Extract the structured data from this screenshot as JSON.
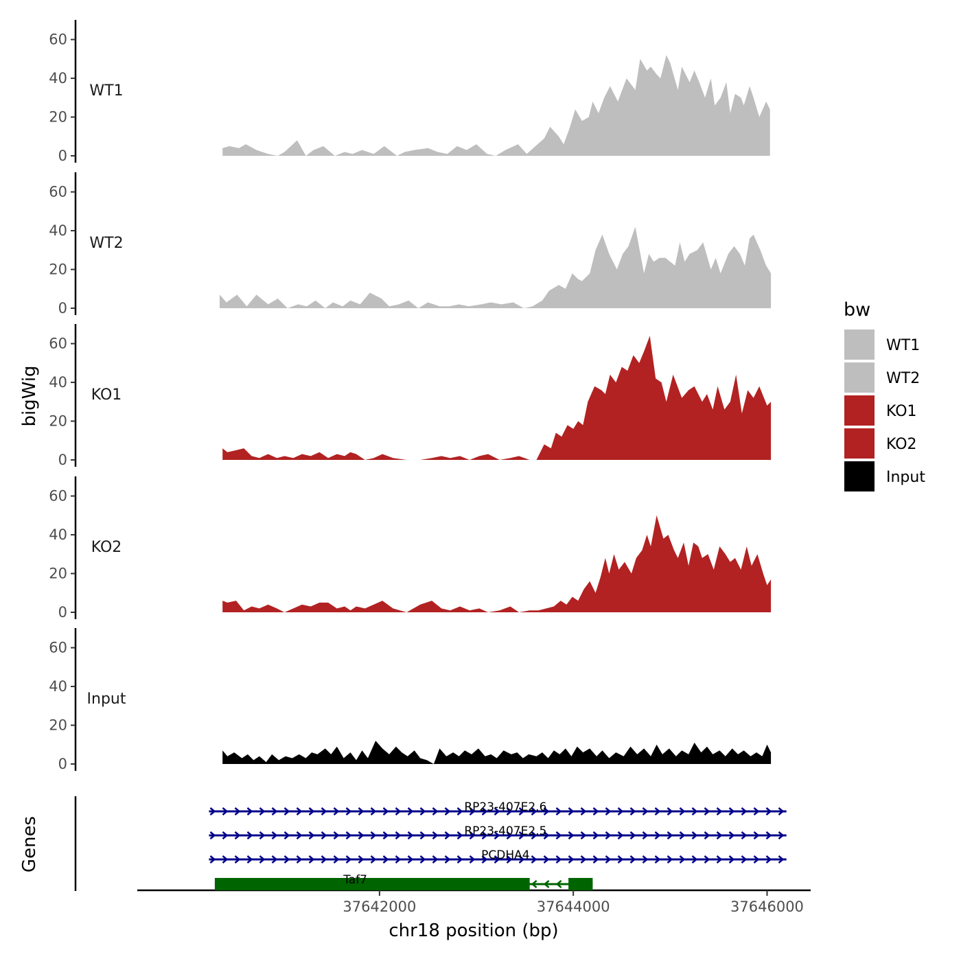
{
  "chart_data": {
    "type": "area",
    "title": "",
    "ylabel": "bigWig",
    "xlabel": "chr18 position (bp)",
    "gene_panel_label": "Genes",
    "x_ticks": [
      37642000,
      37644000,
      37646000
    ],
    "x_tick_labels": [
      "37642000",
      "37644000",
      "37646000"
    ],
    "xlim": [
      37639500,
      37646450
    ],
    "ylim": [
      0,
      68
    ],
    "y_ticks": [
      0,
      20,
      40,
      60
    ],
    "y_tick_labels": [
      "0",
      "20",
      "40",
      "60"
    ],
    "legend": {
      "title": "bw",
      "position": "right",
      "entries": [
        {
          "label": "WT1",
          "color": "#bebebe"
        },
        {
          "label": "WT2",
          "color": "#bebebe"
        },
        {
          "label": "KO1",
          "color": "#b22222"
        },
        {
          "label": "KO2",
          "color": "#b22222"
        },
        {
          "label": "Input",
          "color": "#000000"
        }
      ]
    },
    "series": [
      {
        "name": "WT1",
        "color": "#bebebe",
        "x": [
          37640380,
          37640450,
          37640550,
          37640620,
          37640730,
          37640850,
          37640950,
          37641020,
          37641150,
          37641240,
          37641320,
          37641420,
          37641540,
          37641640,
          37641720,
          37641820,
          37641940,
          37642050,
          37642180,
          37642260,
          37642360,
          37642500,
          37642600,
          37642700,
          37642800,
          37642900,
          37643000,
          37643110,
          37643200,
          37643300,
          37643430,
          37643520,
          37643610,
          37643700,
          37643760,
          37643850,
          37643900,
          37643960,
          37644020,
          37644090,
          37644160,
          37644200,
          37644260,
          37644320,
          37644380,
          37644460,
          37644490,
          37644550,
          37644640,
          37644690,
          37644760,
          37644800,
          37644860,
          37644900,
          37644960,
          37645000,
          37645080,
          37645120,
          37645200,
          37645250,
          37645300,
          37645360,
          37645420,
          37645460,
          37645520,
          37645580,
          37645620,
          37645670,
          37645730,
          37645760,
          37645820,
          37645860,
          37645920,
          37645990,
          37646030
        ],
        "values": [
          4,
          5,
          4,
          6,
          3,
          1,
          0,
          2,
          8,
          0,
          3,
          5,
          0,
          2,
          1,
          3,
          1,
          5,
          0,
          2,
          3,
          4,
          2,
          1,
          5,
          3,
          6,
          1,
          0,
          3,
          6,
          1,
          5,
          9,
          15,
          10,
          6,
          14,
          24,
          18,
          20,
          28,
          22,
          30,
          36,
          28,
          32,
          40,
          34,
          50,
          44,
          46,
          42,
          40,
          52,
          48,
          34,
          46,
          38,
          44,
          38,
          30,
          40,
          26,
          30,
          38,
          22,
          32,
          30,
          26,
          36,
          30,
          20,
          28,
          24
        ]
      },
      {
        "name": "WT2",
        "color": "#bebebe",
        "x": [
          37640350,
          37640420,
          37640530,
          37640630,
          37640730,
          37640850,
          37640950,
          37641050,
          37641160,
          37641250,
          37641340,
          37641440,
          37641520,
          37641620,
          37641700,
          37641800,
          37641900,
          37642020,
          37642100,
          37642200,
          37642300,
          37642400,
          37642500,
          37642620,
          37642720,
          37642820,
          37642920,
          37643050,
          37643150,
          37643260,
          37643380,
          37643490,
          37643580,
          37643680,
          37643750,
          37643850,
          37643920,
          37643990,
          37644050,
          37644090,
          37644170,
          37644230,
          37644300,
          37644370,
          37644450,
          37644510,
          37644570,
          37644640,
          37644730,
          37644780,
          37644830,
          37644890,
          37644950,
          37645050,
          37645100,
          37645150,
          37645200,
          37645280,
          37645340,
          37645420,
          37645470,
          37645520,
          37645600,
          37645660,
          37645720,
          37645770,
          37645820,
          37645860,
          37645930,
          37645990,
          37646040
        ],
        "values": [
          7,
          3,
          7,
          1,
          7,
          2,
          5,
          0,
          2,
          1,
          4,
          0,
          3,
          1,
          4,
          2,
          8,
          5,
          1,
          2,
          4,
          0,
          3,
          1,
          1,
          2,
          1,
          2,
          3,
          2,
          3,
          0,
          1,
          4,
          9,
          12,
          10,
          18,
          15,
          14,
          18,
          30,
          38,
          28,
          20,
          28,
          32,
          42,
          18,
          28,
          24,
          26,
          26,
          22,
          34,
          24,
          28,
          30,
          34,
          20,
          26,
          18,
          28,
          32,
          28,
          22,
          36,
          38,
          30,
          22,
          18
        ]
      },
      {
        "name": "KO1",
        "color": "#b22222",
        "x": [
          37640380,
          37640430,
          37640520,
          37640600,
          37640680,
          37640760,
          37640850,
          37640940,
          37641020,
          37641110,
          37641200,
          37641290,
          37641380,
          37641470,
          37641560,
          37641640,
          37641700,
          37641760,
          37641850,
          37641940,
          37642030,
          37642140,
          37642280,
          37642420,
          37642540,
          37642640,
          37642730,
          37642830,
          37642930,
          37643030,
          37643120,
          37643240,
          37643350,
          37643440,
          37643550,
          37643620,
          37643700,
          37643770,
          37643820,
          37643880,
          37643940,
          37644000,
          37644050,
          37644100,
          37644150,
          37644220,
          37644290,
          37644330,
          37644380,
          37644440,
          37644500,
          37644560,
          37644620,
          37644680,
          37644730,
          37644790,
          37644850,
          37644910,
          37644960,
          37645030,
          37645120,
          37645190,
          37645250,
          37645330,
          37645380,
          37645440,
          37645490,
          37645560,
          37645620,
          37645680,
          37645740,
          37645800,
          37645860,
          37645920,
          37646000,
          37646040
        ],
        "values": [
          6,
          4,
          5,
          6,
          2,
          1,
          3,
          1,
          2,
          1,
          3,
          2,
          4,
          1,
          3,
          2,
          4,
          3,
          0,
          1,
          3,
          1,
          0,
          0,
          1,
          2,
          1,
          2,
          0,
          2,
          3,
          0,
          1,
          2,
          0,
          0,
          8,
          6,
          14,
          12,
          18,
          16,
          20,
          18,
          30,
          38,
          36,
          34,
          44,
          40,
          48,
          46,
          54,
          50,
          56,
          64,
          42,
          40,
          30,
          44,
          32,
          36,
          38,
          30,
          34,
          26,
          38,
          26,
          30,
          44,
          24,
          36,
          32,
          38,
          28,
          30
        ]
      },
      {
        "name": "KO2",
        "color": "#b22222",
        "x": [
          37640380,
          37640430,
          37640520,
          37640600,
          37640680,
          37640760,
          37640850,
          37640940,
          37641020,
          37641110,
          37641200,
          37641290,
          37641380,
          37641470,
          37641560,
          37641640,
          37641700,
          37641760,
          37641850,
          37641940,
          37642030,
          37642140,
          37642280,
          37642420,
          37642540,
          37642640,
          37642730,
          37642830,
          37642930,
          37643030,
          37643120,
          37643240,
          37643350,
          37643440,
          37643550,
          37643640,
          37643720,
          37643800,
          37643870,
          37643930,
          37643990,
          37644050,
          37644110,
          37644170,
          37644230,
          37644280,
          37644330,
          37644370,
          37644420,
          37644470,
          37644530,
          37644600,
          37644650,
          37644710,
          37644760,
          37644800,
          37644860,
          37644930,
          37644980,
          37645040,
          37645080,
          37645140,
          37645190,
          37645240,
          37645290,
          37645330,
          37645390,
          37645450,
          37645510,
          37645570,
          37645620,
          37645670,
          37645730,
          37645790,
          37645840,
          37645900,
          37645960,
          37646000,
          37646040
        ],
        "values": [
          6,
          5,
          6,
          1,
          3,
          2,
          4,
          2,
          0,
          2,
          4,
          3,
          5,
          5,
          2,
          3,
          1,
          3,
          2,
          4,
          6,
          2,
          0,
          4,
          6,
          2,
          1,
          3,
          1,
          2,
          0,
          1,
          3,
          0,
          1,
          1,
          2,
          3,
          6,
          4,
          8,
          6,
          12,
          16,
          10,
          18,
          28,
          20,
          30,
          22,
          26,
          20,
          28,
          32,
          40,
          34,
          50,
          38,
          40,
          32,
          28,
          36,
          24,
          36,
          34,
          28,
          30,
          22,
          34,
          30,
          26,
          28,
          22,
          34,
          24,
          30,
          20,
          14,
          17
        ]
      },
      {
        "name": "Input",
        "color": "#000000",
        "x": [
          37640380,
          37640430,
          37640500,
          37640580,
          37640640,
          37640700,
          37640760,
          37640830,
          37640890,
          37640960,
          37641030,
          37641100,
          37641170,
          37641240,
          37641300,
          37641360,
          37641440,
          37641500,
          37641560,
          37641630,
          37641700,
          37641760,
          37641820,
          37641880,
          37641960,
          37642030,
          37642100,
          37642170,
          37642230,
          37642290,
          37642360,
          37642420,
          37642490,
          37642560,
          37642620,
          37642690,
          37642760,
          37642820,
          37642880,
          37642950,
          37643020,
          37643090,
          37643150,
          37643210,
          37643280,
          37643360,
          37643420,
          37643480,
          37643540,
          37643620,
          37643680,
          37643740,
          37643800,
          37643860,
          37643920,
          37643980,
          37644040,
          37644100,
          37644170,
          37644240,
          37644300,
          37644370,
          37644440,
          37644520,
          37644590,
          37644660,
          37644730,
          37644800,
          37644860,
          37644920,
          37644990,
          37645060,
          37645120,
          37645190,
          37645250,
          37645320,
          37645380,
          37645440,
          37645510,
          37645570,
          37645640,
          37645700,
          37645760,
          37645830,
          37645890,
          37645950,
          37646000,
          37646040
        ],
        "values": [
          7,
          4,
          6,
          3,
          5,
          2,
          4,
          1,
          5,
          2,
          4,
          3,
          5,
          3,
          6,
          5,
          8,
          5,
          9,
          3,
          6,
          2,
          7,
          3,
          12,
          8,
          5,
          9,
          6,
          4,
          7,
          3,
          2,
          0,
          8,
          4,
          6,
          4,
          7,
          5,
          8,
          4,
          5,
          3,
          7,
          5,
          6,
          3,
          5,
          4,
          6,
          3,
          7,
          5,
          8,
          4,
          9,
          6,
          8,
          4,
          7,
          3,
          6,
          4,
          9,
          5,
          8,
          4,
          10,
          5,
          8,
          4,
          7,
          5,
          11,
          6,
          9,
          5,
          7,
          4,
          8,
          5,
          7,
          4,
          6,
          4,
          10,
          6
        ]
      }
    ],
    "genes": [
      {
        "name": "RP23-407E2.6",
        "start": 37640240,
        "end": 37646200,
        "strand": "+",
        "color": "#00008b"
      },
      {
        "name": "RP23-407E2.5",
        "start": 37640240,
        "end": 37646200,
        "strand": "+",
        "color": "#00008b"
      },
      {
        "name": "PCDHA4",
        "start": 37640240,
        "end": 37646200,
        "strand": "+",
        "color": "#00008b"
      },
      {
        "name": "Taf7",
        "start": 37640300,
        "end": 37644200,
        "strand": "-",
        "color": "#006400",
        "exons": [
          [
            37640300,
            37643550
          ],
          [
            37643950,
            37644200
          ]
        ]
      }
    ]
  }
}
